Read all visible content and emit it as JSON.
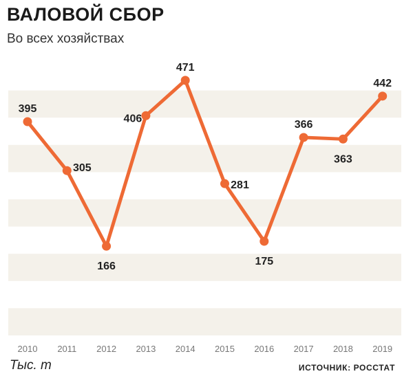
{
  "title": "ВАЛОВОЙ СБОР",
  "subtitle": "Во всех хозяйствах",
  "unit": "Тыс. т",
  "source": "ИСТОЧНИК: РОССТАТ",
  "colors": {
    "line": "#ee6a35",
    "band": "#f4f1ea",
    "background": "#ffffff"
  },
  "chart_data": {
    "type": "line",
    "categories": [
      "2010",
      "2011",
      "2012",
      "2013",
      "2014",
      "2015",
      "2016",
      "2017",
      "2018",
      "2019"
    ],
    "values": [
      395,
      305,
      166,
      406,
      471,
      281,
      175,
      366,
      363,
      442
    ],
    "value_labels": [
      "395",
      "305",
      "166",
      "406",
      "471",
      "281",
      "175",
      "366",
      "363",
      "442"
    ],
    "xlabel": "",
    "ylabel": "",
    "ylim": [
      0,
      500
    ],
    "grid": "alternating horizontal bands",
    "legend": "none"
  }
}
